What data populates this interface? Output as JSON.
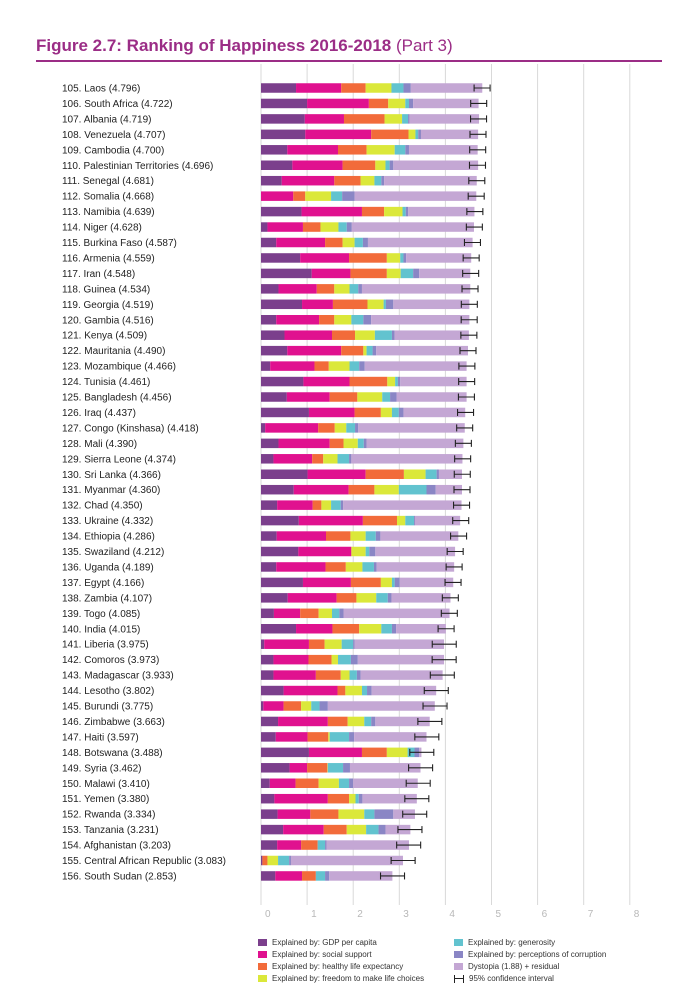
{
  "header": {
    "title_main": "Figure 2.7: Ranking of Happiness 2016-2018",
    "title_part": "(Part 3)"
  },
  "chart_data": {
    "type": "bar",
    "stacked": true,
    "orientation": "horizontal",
    "xlim": [
      0,
      8
    ],
    "x_ticks": [
      "0",
      "1",
      "2",
      "3",
      "4",
      "5",
      "6",
      "7",
      "8"
    ],
    "grid": true,
    "legend_position": "bottom",
    "series": [
      {
        "name": "Explained by: GDP per capita",
        "color": "#7b3f8c"
      },
      {
        "name": "Explained by: social support",
        "color": "#e0118f"
      },
      {
        "name": "Explained by: healthy life expectancy",
        "color": "#f26b3a"
      },
      {
        "name": "Explained by: freedom to make life choices",
        "color": "#dbe83a"
      },
      {
        "name": "Explained by: generosity",
        "color": "#62c3cf"
      },
      {
        "name": "Explained by: perceptions of corruption",
        "color": "#8a86c5"
      },
      {
        "name": "Dystopia (1.88) + residual",
        "color": "#c4a7d4"
      }
    ],
    "ci_legend": "95% confidence interval",
    "rows": [
      {
        "label": "105.  Laos (4.796)",
        "score": 4.796,
        "values": [
          0.76,
          0.98,
          0.53,
          0.56,
          0.26,
          0.16,
          1.55
        ]
      },
      {
        "label": "106.  South Africa (4.722)",
        "score": 4.722,
        "values": [
          1.0,
          1.34,
          0.42,
          0.37,
          0.08,
          0.09,
          1.42
        ]
      },
      {
        "label": "107.  Albania (4.719)",
        "score": 4.719,
        "values": [
          0.95,
          0.85,
          0.88,
          0.38,
          0.13,
          0.03,
          1.51
        ]
      },
      {
        "label": "108.  Venezuela (4.707)",
        "score": 4.707,
        "values": [
          0.96,
          1.43,
          0.81,
          0.15,
          0.06,
          0.06,
          1.24
        ]
      },
      {
        "label": "109.  Cambodia (4.700)",
        "score": 4.7,
        "values": [
          0.57,
          1.1,
          0.62,
          0.61,
          0.23,
          0.08,
          1.49
        ]
      },
      {
        "label": "110.  Palestinian Territories (4.696)",
        "score": 4.696,
        "values": [
          0.68,
          1.09,
          0.71,
          0.22,
          0.09,
          0.08,
          1.84
        ]
      },
      {
        "label": "111.  Senegal (4.681)",
        "score": 4.681,
        "values": [
          0.45,
          1.14,
          0.57,
          0.3,
          0.15,
          0.06,
          2.01
        ]
      },
      {
        "label": "112.  Somalia (4.668)",
        "score": 4.668,
        "values": [
          0.0,
          0.7,
          0.26,
          0.56,
          0.24,
          0.27,
          2.64
        ]
      },
      {
        "label": "113.  Namibia (4.639)",
        "score": 4.639,
        "values": [
          0.88,
          1.31,
          0.48,
          0.4,
          0.07,
          0.05,
          1.44
        ]
      },
      {
        "label": "114.  Niger (4.628)",
        "score": 4.628,
        "values": [
          0.14,
          0.77,
          0.38,
          0.39,
          0.18,
          0.11,
          2.65
        ]
      },
      {
        "label": "115.  Burkina Faso (4.587)",
        "score": 4.587,
        "values": [
          0.33,
          1.06,
          0.38,
          0.26,
          0.18,
          0.11,
          2.27
        ]
      },
      {
        "label": "116.  Armenia (4.559)",
        "score": 4.559,
        "values": [
          0.85,
          1.06,
          0.82,
          0.29,
          0.07,
          0.06,
          1.41
        ]
      },
      {
        "label": "117.  Iran (4.548)",
        "score": 4.548,
        "values": [
          1.1,
          0.84,
          0.79,
          0.3,
          0.27,
          0.13,
          1.11
        ]
      },
      {
        "label": "118.  Guinea (4.534)",
        "score": 4.534,
        "values": [
          0.38,
          0.83,
          0.38,
          0.33,
          0.19,
          0.08,
          2.35
        ]
      },
      {
        "label": "119.  Georgia (4.519)",
        "score": 4.519,
        "values": [
          0.89,
          0.67,
          0.75,
          0.35,
          0.05,
          0.16,
          1.65
        ]
      },
      {
        "label": "120.  Gambia (4.516)",
        "score": 4.516,
        "values": [
          0.33,
          0.93,
          0.33,
          0.37,
          0.26,
          0.17,
          2.13
        ]
      },
      {
        "label": "121.  Kenya (4.509)",
        "score": 4.509,
        "values": [
          0.51,
          1.03,
          0.5,
          0.43,
          0.37,
          0.06,
          1.61
        ]
      },
      {
        "label": "122.  Mauritania (4.490)",
        "score": 4.49,
        "values": [
          0.57,
          1.17,
          0.48,
          0.07,
          0.13,
          0.08,
          1.99
        ]
      },
      {
        "label": "123.  Mozambique (4.466)",
        "score": 4.466,
        "values": [
          0.2,
          0.96,
          0.31,
          0.45,
          0.21,
          0.12,
          2.21
        ]
      },
      {
        "label": "124.  Tunisia (4.461)",
        "score": 4.461,
        "values": [
          0.92,
          1.0,
          0.82,
          0.17,
          0.06,
          0.05,
          1.44
        ]
      },
      {
        "label": "125.  Bangladesh (4.456)",
        "score": 4.456,
        "values": [
          0.56,
          0.93,
          0.6,
          0.54,
          0.17,
          0.14,
          1.52
        ]
      },
      {
        "label": "126.  Iraq (4.437)",
        "score": 4.437,
        "values": [
          1.04,
          0.99,
          0.57,
          0.24,
          0.15,
          0.1,
          1.34
        ]
      },
      {
        "label": "127.  Congo (Kinshasa) (4.418)",
        "score": 4.418,
        "values": [
          0.09,
          1.15,
          0.36,
          0.25,
          0.19,
          0.07,
          2.31
        ]
      },
      {
        "label": "128.  Mali (4.390)",
        "score": 4.39,
        "values": [
          0.38,
          1.11,
          0.3,
          0.31,
          0.13,
          0.06,
          2.1
        ]
      },
      {
        "label": "129.  Sierra Leone (4.374)",
        "score": 4.374,
        "values": [
          0.27,
          0.84,
          0.24,
          0.31,
          0.25,
          0.05,
          2.41
        ]
      },
      {
        "label": "130.  Sri Lanka (4.366)",
        "score": 4.366,
        "values": [
          1.01,
          1.26,
          0.83,
          0.47,
          0.24,
          0.05,
          0.5
        ]
      },
      {
        "label": "131.  Myanmar (4.360)",
        "score": 4.36,
        "values": [
          0.71,
          1.19,
          0.56,
          0.53,
          0.6,
          0.2,
          0.57
        ]
      },
      {
        "label": "132.  Chad (4.350)",
        "score": 4.35,
        "values": [
          0.35,
          0.77,
          0.19,
          0.21,
          0.21,
          0.05,
          2.57
        ]
      },
      {
        "label": "133.  Ukraine (4.332)",
        "score": 4.332,
        "values": [
          0.82,
          1.39,
          0.74,
          0.18,
          0.19,
          0.02,
          0.98
        ]
      },
      {
        "label": "134.  Ethiopia (4.286)",
        "score": 4.286,
        "values": [
          0.34,
          1.07,
          0.53,
          0.33,
          0.22,
          0.1,
          1.69
        ]
      },
      {
        "label": "135.  Swaziland (4.212)",
        "score": 4.212,
        "values": [
          0.81,
          1.15,
          0.0,
          0.31,
          0.08,
          0.13,
          1.73
        ]
      },
      {
        "label": "136.  Uganda (4.189)",
        "score": 4.189,
        "values": [
          0.33,
          1.07,
          0.44,
          0.36,
          0.25,
          0.06,
          1.68
        ]
      },
      {
        "label": "137.  Egypt (4.166)",
        "score": 4.166,
        "values": [
          0.91,
          1.04,
          0.65,
          0.24,
          0.06,
          0.11,
          1.16
        ]
      },
      {
        "label": "138.  Zambia (4.107)",
        "score": 4.107,
        "values": [
          0.58,
          1.06,
          0.43,
          0.43,
          0.25,
          0.08,
          1.28
        ]
      },
      {
        "label": "139.  Togo (4.085)",
        "score": 4.085,
        "values": [
          0.28,
          0.57,
          0.4,
          0.29,
          0.16,
          0.09,
          2.3
        ]
      },
      {
        "label": "140.  India (4.015)",
        "score": 4.015,
        "values": [
          0.76,
          0.79,
          0.58,
          0.48,
          0.23,
          0.09,
          1.08
        ]
      },
      {
        "label": "141.  Liberia (3.975)",
        "score": 3.975,
        "values": [
          0.07,
          0.97,
          0.34,
          0.37,
          0.25,
          0.03,
          1.94
        ]
      },
      {
        "label": "142.  Comoros (3.973)",
        "score": 3.973,
        "values": [
          0.27,
          0.76,
          0.5,
          0.14,
          0.28,
          0.15,
          1.87
        ]
      },
      {
        "label": "143.  Madagascar (3.933)",
        "score": 3.933,
        "values": [
          0.27,
          0.92,
          0.54,
          0.19,
          0.16,
          0.08,
          1.78
        ]
      },
      {
        "label": "144.  Lesotho (3.802)",
        "score": 3.802,
        "values": [
          0.49,
          1.17,
          0.17,
          0.36,
          0.11,
          0.1,
          1.4
        ]
      },
      {
        "label": "145.  Burundi (3.775)",
        "score": 3.775,
        "values": [
          0.05,
          0.44,
          0.38,
          0.22,
          0.18,
          0.18,
          2.32
        ]
      },
      {
        "label": "146.  Zimbabwe (3.663)",
        "score": 3.663,
        "values": [
          0.37,
          1.08,
          0.43,
          0.36,
          0.15,
          0.09,
          1.18
        ]
      },
      {
        "label": "147.  Haiti (3.597)",
        "score": 3.597,
        "values": [
          0.32,
          0.69,
          0.45,
          0.03,
          0.42,
          0.11,
          1.57
        ]
      },
      {
        "label": "148.  Botswana (3.488)",
        "score": 3.488,
        "values": [
          1.04,
          1.15,
          0.54,
          0.45,
          0.15,
          0.1,
          0.05
        ]
      },
      {
        "label": "149.  Syria (3.462)",
        "score": 3.462,
        "values": [
          0.62,
          0.38,
          0.44,
          0.01,
          0.33,
          0.15,
          1.53
        ]
      },
      {
        "label": "150.  Malawi (3.410)",
        "score": 3.41,
        "values": [
          0.19,
          0.56,
          0.5,
          0.44,
          0.22,
          0.09,
          1.4
        ]
      },
      {
        "label": "151.  Yemen (3.380)",
        "score": 3.38,
        "values": [
          0.29,
          1.16,
          0.46,
          0.14,
          0.07,
          0.08,
          1.18
        ]
      },
      {
        "label": "152.  Rwanda (3.334)",
        "score": 3.334,
        "values": [
          0.36,
          0.71,
          0.61,
          0.56,
          0.22,
          0.41,
          0.47
        ]
      },
      {
        "label": "153.  Tanzania (3.231)",
        "score": 3.231,
        "values": [
          0.48,
          0.88,
          0.5,
          0.42,
          0.27,
          0.15,
          0.54
        ]
      },
      {
        "label": "154.  Afghanistan (3.203)",
        "score": 3.203,
        "values": [
          0.35,
          0.52,
          0.36,
          0.0,
          0.16,
          0.03,
          1.79
        ]
      },
      {
        "label": "155.  Central African Republic (3.083)",
        "score": 3.083,
        "values": [
          0.03,
          0.0,
          0.11,
          0.23,
          0.24,
          0.04,
          2.43
        ]
      },
      {
        "label": "156.  South Sudan (2.853)",
        "score": 2.853,
        "values": [
          0.31,
          0.58,
          0.3,
          0.0,
          0.2,
          0.09,
          1.37
        ]
      }
    ]
  }
}
